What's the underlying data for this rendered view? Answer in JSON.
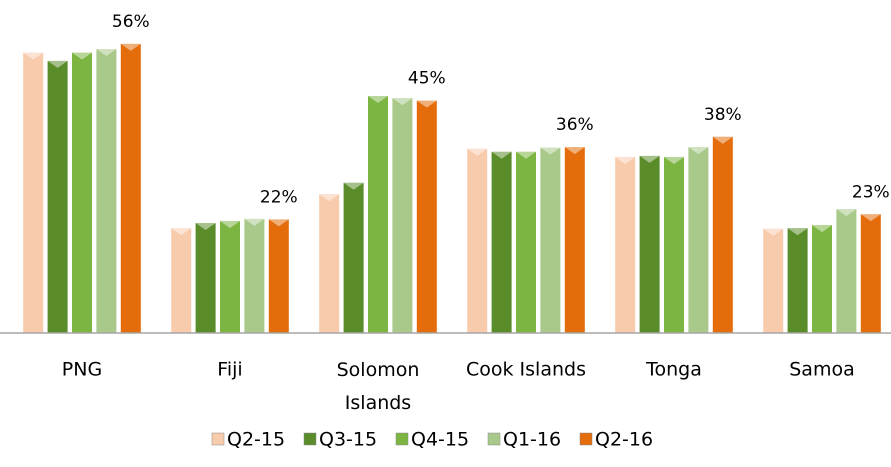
{
  "chart_data": {
    "type": "bar",
    "categories": [
      "PNG",
      "Fiji",
      "Solomon Islands",
      "Cook Islands",
      "Tonga",
      "Samoa"
    ],
    "series": [
      {
        "name": "Q2-15",
        "color": "#f8cbad",
        "values": [
          54.3,
          20.3,
          26.9,
          35.7,
          34.1,
          20.2
        ]
      },
      {
        "name": "Q3-15",
        "color": "#5b8c2a",
        "values": [
          52.7,
          21.3,
          29.1,
          35.1,
          34.3,
          20.3
        ]
      },
      {
        "name": "Q4-15",
        "color": "#7db543",
        "values": [
          54.3,
          21.7,
          45.9,
          35.1,
          34.1,
          20.9
        ]
      },
      {
        "name": "Q1-16",
        "color": "#a9c98a",
        "values": [
          55.0,
          22.1,
          45.5,
          35.9,
          36.0,
          24.0
        ]
      },
      {
        "name": "Q2-16",
        "color": "#e46c0a",
        "values": [
          56,
          22,
          45,
          36,
          38,
          23
        ],
        "value_labels": [
          "56%",
          "22%",
          "45%",
          "36%",
          "38%",
          "23%"
        ]
      }
    ],
    "ylim": [
      0,
      64.5
    ],
    "grid": false,
    "legend": "bottom"
  }
}
